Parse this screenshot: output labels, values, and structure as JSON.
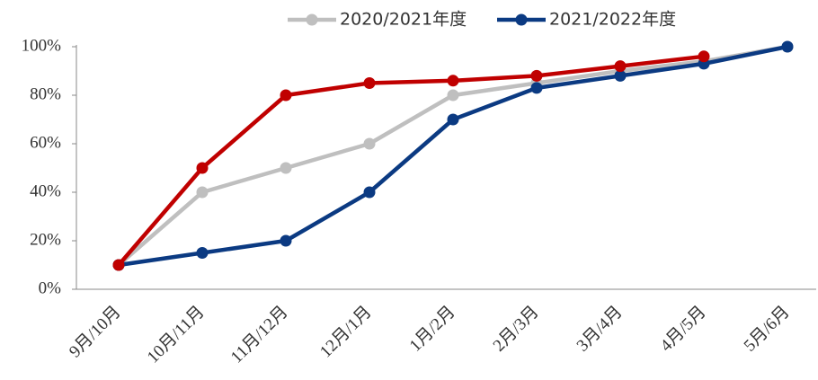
{
  "chart_data": {
    "type": "line",
    "categories": [
      "9月/10月",
      "10月/11月",
      "11月/12月",
      "12月/1月",
      "1月/2月",
      "2月/3月",
      "3月/4月",
      "4月/5月",
      "5月/6月"
    ],
    "series": [
      {
        "name": "2020/2021年度",
        "color": "#bfbfbf",
        "values": [
          10,
          40,
          50,
          60,
          80,
          85,
          90,
          94,
          100
        ]
      },
      {
        "name": "2021/2022年度",
        "color": "#0b3a82",
        "values": [
          10,
          15,
          20,
          40,
          70,
          83,
          88,
          93,
          100
        ]
      },
      {
        "color": "#c00000",
        "values": [
          10,
          50,
          80,
          85,
          86,
          88,
          92,
          96,
          null
        ]
      }
    ],
    "ylim": [
      0,
      100
    ],
    "yticks": [
      {
        "value": 0,
        "label": "0%"
      },
      {
        "value": 20,
        "label": "20%"
      },
      {
        "value": 40,
        "label": "40%"
      },
      {
        "value": 60,
        "label": "60%"
      },
      {
        "value": 80,
        "label": "80%"
      },
      {
        "value": 100,
        "label": "100%"
      }
    ],
    "legend": "top"
  }
}
